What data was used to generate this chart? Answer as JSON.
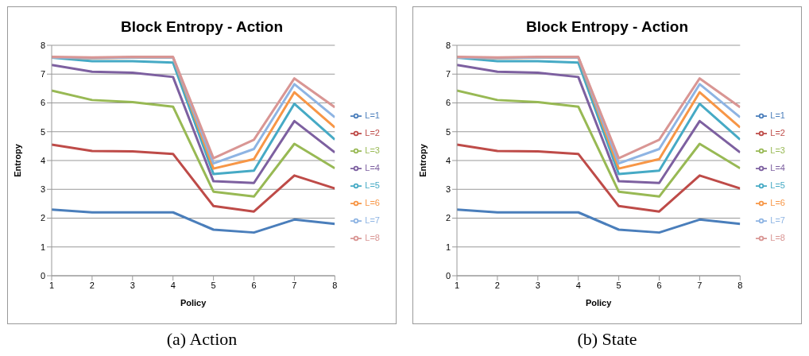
{
  "chart_data": [
    {
      "type": "line",
      "title": "Block Entropy - Action",
      "xlabel": "Policy",
      "ylabel": "Entropy",
      "annotations": [
        "(a) Action"
      ],
      "x": [
        1,
        2,
        3,
        4,
        5,
        6,
        7,
        8
      ],
      "xlim": [
        1,
        8
      ],
      "xticks": [
        1,
        2,
        3,
        4,
        5,
        6,
        7,
        8
      ],
      "ylim": [
        0,
        8
      ],
      "yticks": [
        0,
        1,
        2,
        3,
        4,
        5,
        6,
        7,
        8
      ],
      "grid": "y",
      "legend": "right",
      "marker": "none",
      "line_style": "solid",
      "series": [
        {
          "name": "L=1",
          "color": "#4a7ebb",
          "values": [
            2.3,
            2.2,
            2.2,
            2.2,
            1.6,
            1.5,
            1.95,
            1.8
          ]
        },
        {
          "name": "L=2",
          "color": "#be4b48",
          "values": [
            4.55,
            4.33,
            4.32,
            4.23,
            2.42,
            2.23,
            3.48,
            3.03
          ]
        },
        {
          "name": "L=3",
          "color": "#98b954",
          "values": [
            6.43,
            6.1,
            6.03,
            5.87,
            2.92,
            2.75,
            4.58,
            3.73
          ]
        },
        {
          "name": "L=4",
          "color": "#7d60a0",
          "values": [
            7.32,
            7.08,
            7.05,
            6.9,
            3.28,
            3.22,
            5.37,
            4.28
          ]
        },
        {
          "name": "L=5",
          "color": "#46aac5",
          "values": [
            7.57,
            7.45,
            7.45,
            7.4,
            3.53,
            3.65,
            5.97,
            4.73
          ]
        },
        {
          "name": "L=6",
          "color": "#f79646",
          "values": [
            7.58,
            7.55,
            7.57,
            7.57,
            3.72,
            4.05,
            6.37,
            5.15
          ]
        },
        {
          "name": "L=7",
          "color": "#8eb4e3",
          "values": [
            7.58,
            7.56,
            7.58,
            7.58,
            3.9,
            4.4,
            6.65,
            5.5
          ]
        },
        {
          "name": "L=8",
          "color": "#d99694",
          "values": [
            7.6,
            7.58,
            7.6,
            7.6,
            4.08,
            4.72,
            6.85,
            5.85
          ]
        }
      ]
    },
    {
      "type": "line",
      "title": "Block Entropy - Action",
      "xlabel": "Policy",
      "ylabel": "Entropy",
      "annotations": [
        "(b) State"
      ],
      "x": [
        1,
        2,
        3,
        4,
        5,
        6,
        7,
        8
      ],
      "xlim": [
        1,
        8
      ],
      "xticks": [
        1,
        2,
        3,
        4,
        5,
        6,
        7,
        8
      ],
      "ylim": [
        0,
        8
      ],
      "yticks": [
        0,
        1,
        2,
        3,
        4,
        5,
        6,
        7,
        8
      ],
      "grid": "y",
      "legend": "right",
      "marker": "none",
      "line_style": "solid",
      "series": [
        {
          "name": "L=1",
          "color": "#4a7ebb",
          "values": [
            2.3,
            2.2,
            2.2,
            2.2,
            1.6,
            1.5,
            1.95,
            1.8
          ]
        },
        {
          "name": "L=2",
          "color": "#be4b48",
          "values": [
            4.55,
            4.33,
            4.32,
            4.23,
            2.42,
            2.23,
            3.48,
            3.03
          ]
        },
        {
          "name": "L=3",
          "color": "#98b954",
          "values": [
            6.43,
            6.1,
            6.03,
            5.87,
            2.92,
            2.75,
            4.58,
            3.73
          ]
        },
        {
          "name": "L=4",
          "color": "#7d60a0",
          "values": [
            7.32,
            7.08,
            7.05,
            6.9,
            3.28,
            3.22,
            5.37,
            4.28
          ]
        },
        {
          "name": "L=5",
          "color": "#46aac5",
          "values": [
            7.57,
            7.45,
            7.45,
            7.4,
            3.53,
            3.65,
            5.97,
            4.73
          ]
        },
        {
          "name": "L=6",
          "color": "#f79646",
          "values": [
            7.58,
            7.55,
            7.57,
            7.57,
            3.72,
            4.05,
            6.37,
            5.15
          ]
        },
        {
          "name": "L=7",
          "color": "#8eb4e3",
          "values": [
            7.58,
            7.56,
            7.58,
            7.58,
            3.9,
            4.4,
            6.65,
            5.5
          ]
        },
        {
          "name": "L=8",
          "color": "#d99694",
          "values": [
            7.6,
            7.58,
            7.6,
            7.6,
            4.08,
            4.72,
            6.85,
            5.85
          ]
        }
      ]
    }
  ]
}
